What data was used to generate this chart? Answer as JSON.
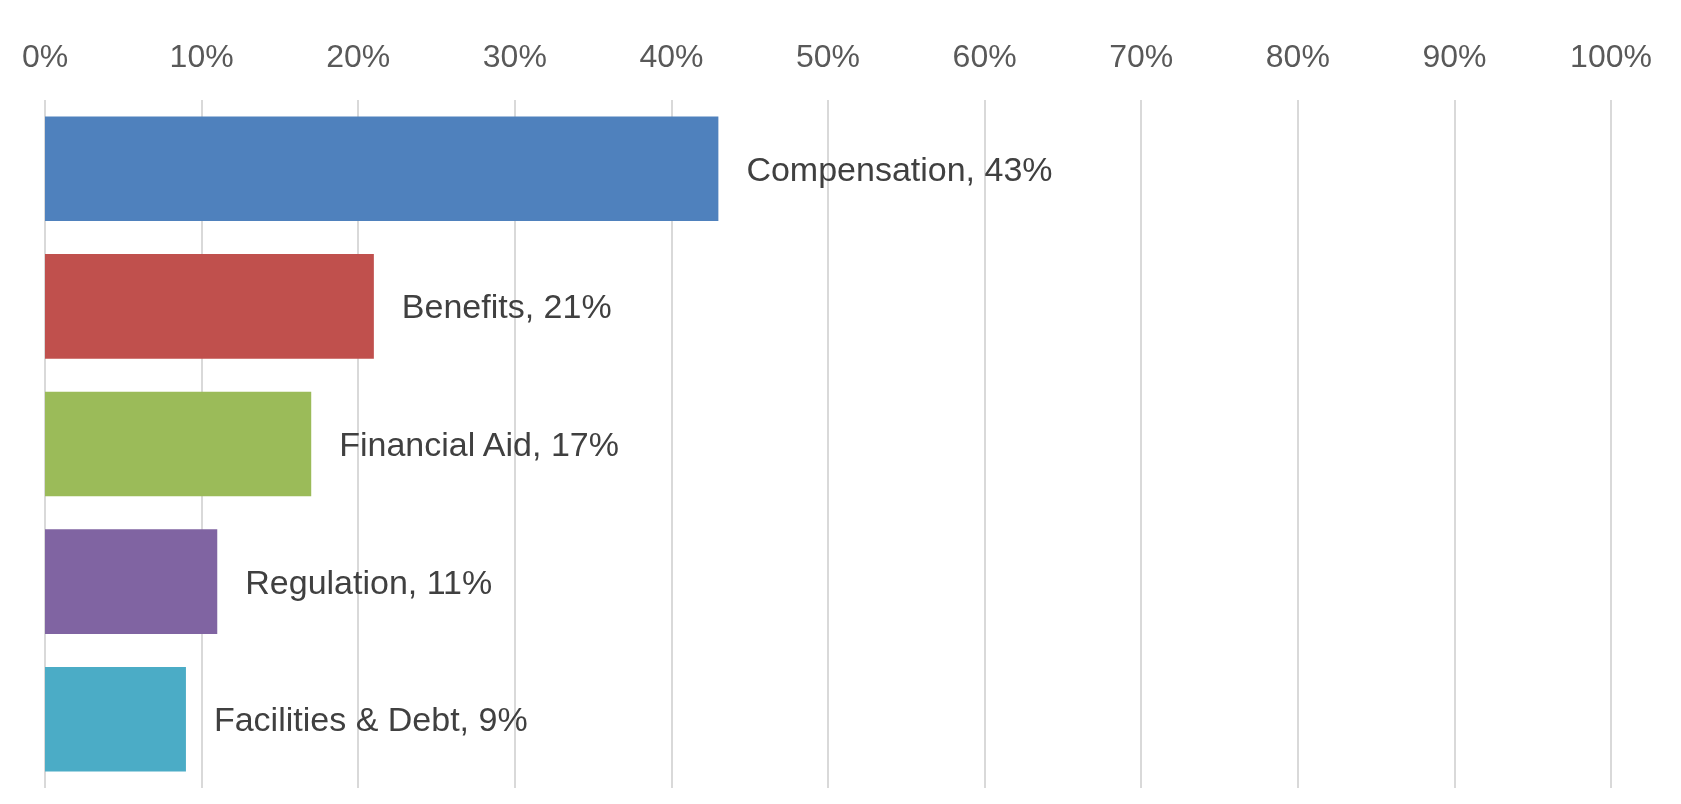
{
  "chart_data": {
    "type": "bar",
    "orientation": "horizontal",
    "categories": [
      null,
      null,
      null,
      null,
      null
    ],
    "values": [
      43,
      21,
      17,
      11,
      9
    ],
    "colors": [
      "#4f81bd",
      "#c0504d",
      "#9bbb59",
      "#8064a2",
      "#4bacc6"
    ],
    "value_labels": [
      "Compensation, 43%",
      "Benefits, 21%",
      "Financial Aid, 17%",
      "Regulation, 11%",
      "Facilities & Debt, 9%"
    ],
    "xlim": [
      0,
      100
    ],
    "xticks": [
      {
        "value": 0,
        "label": "0%"
      },
      {
        "value": 10,
        "label": "10%"
      },
      {
        "value": 20,
        "label": "20%"
      },
      {
        "value": 30,
        "label": "30%"
      },
      {
        "value": 40,
        "label": "40%"
      },
      {
        "value": 50,
        "label": "50%"
      },
      {
        "value": 60,
        "label": "60%"
      },
      {
        "value": 70,
        "label": "70%"
      },
      {
        "value": 80,
        "label": "80%"
      },
      {
        "value": 90,
        "label": "90%"
      },
      {
        "value": 100,
        "label": "100%"
      }
    ],
    "tick_labels": "x",
    "grid": "x"
  }
}
